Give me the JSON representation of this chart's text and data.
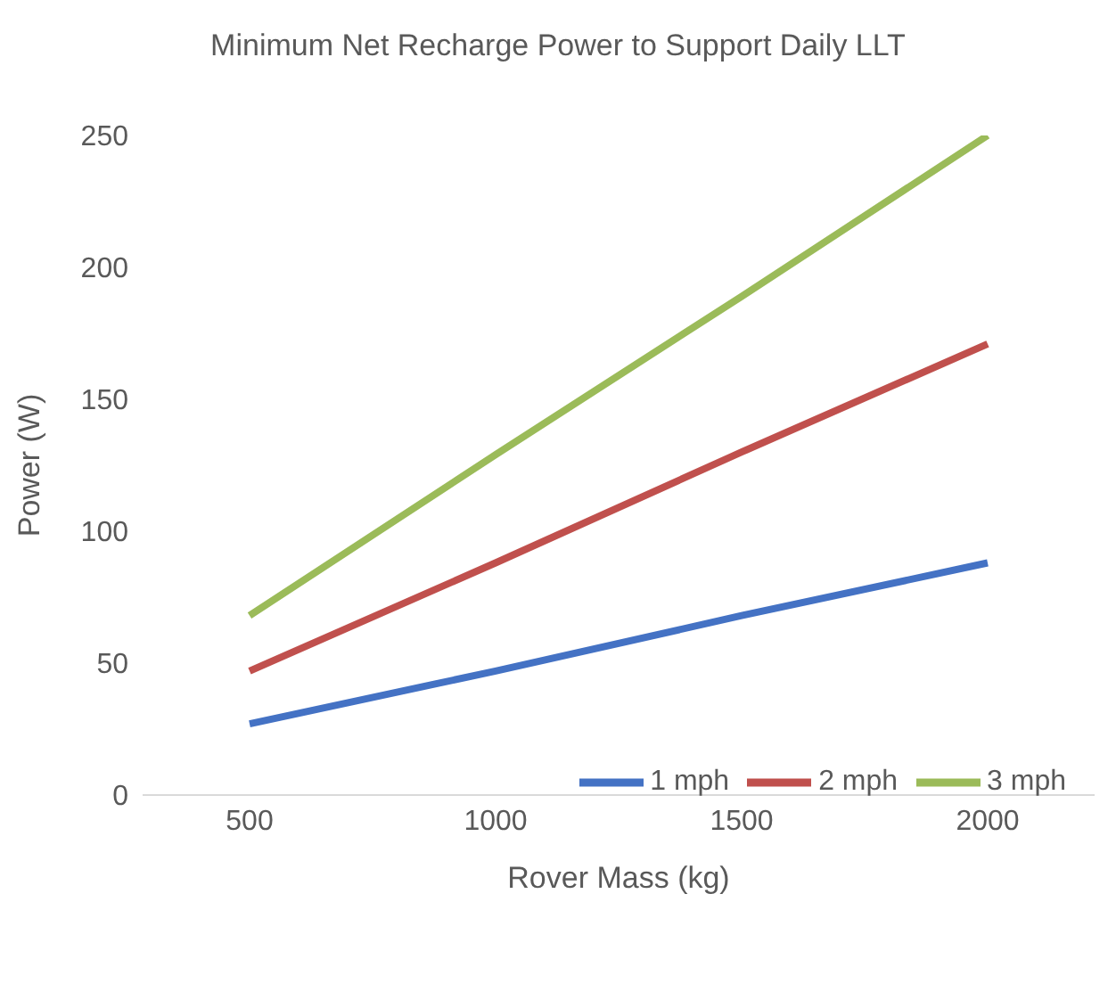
{
  "chart_data": {
    "type": "line",
    "title": "Minimum Net Recharge Power to Support Daily LLT",
    "xlabel": "Rover Mass (kg)",
    "ylabel": "Power (W)",
    "categories": [
      "500",
      "1000",
      "1500",
      "2000"
    ],
    "series": [
      {
        "name": "1 mph",
        "color": "#4472c4",
        "values": [
          27,
          47,
          68,
          88
        ]
      },
      {
        "name": "2 mph",
        "color": "#c0504d",
        "values": [
          47,
          88,
          130,
          171
        ]
      },
      {
        "name": "3 mph",
        "color": "#9bbb59",
        "values": [
          68,
          129,
          189,
          250
        ]
      }
    ],
    "ylim": [
      0,
      250
    ],
    "yticks": [
      0,
      50,
      100,
      150,
      200,
      250
    ],
    "grid": false,
    "legend": "bottom right",
    "marker": "none",
    "line_style": "solid"
  }
}
